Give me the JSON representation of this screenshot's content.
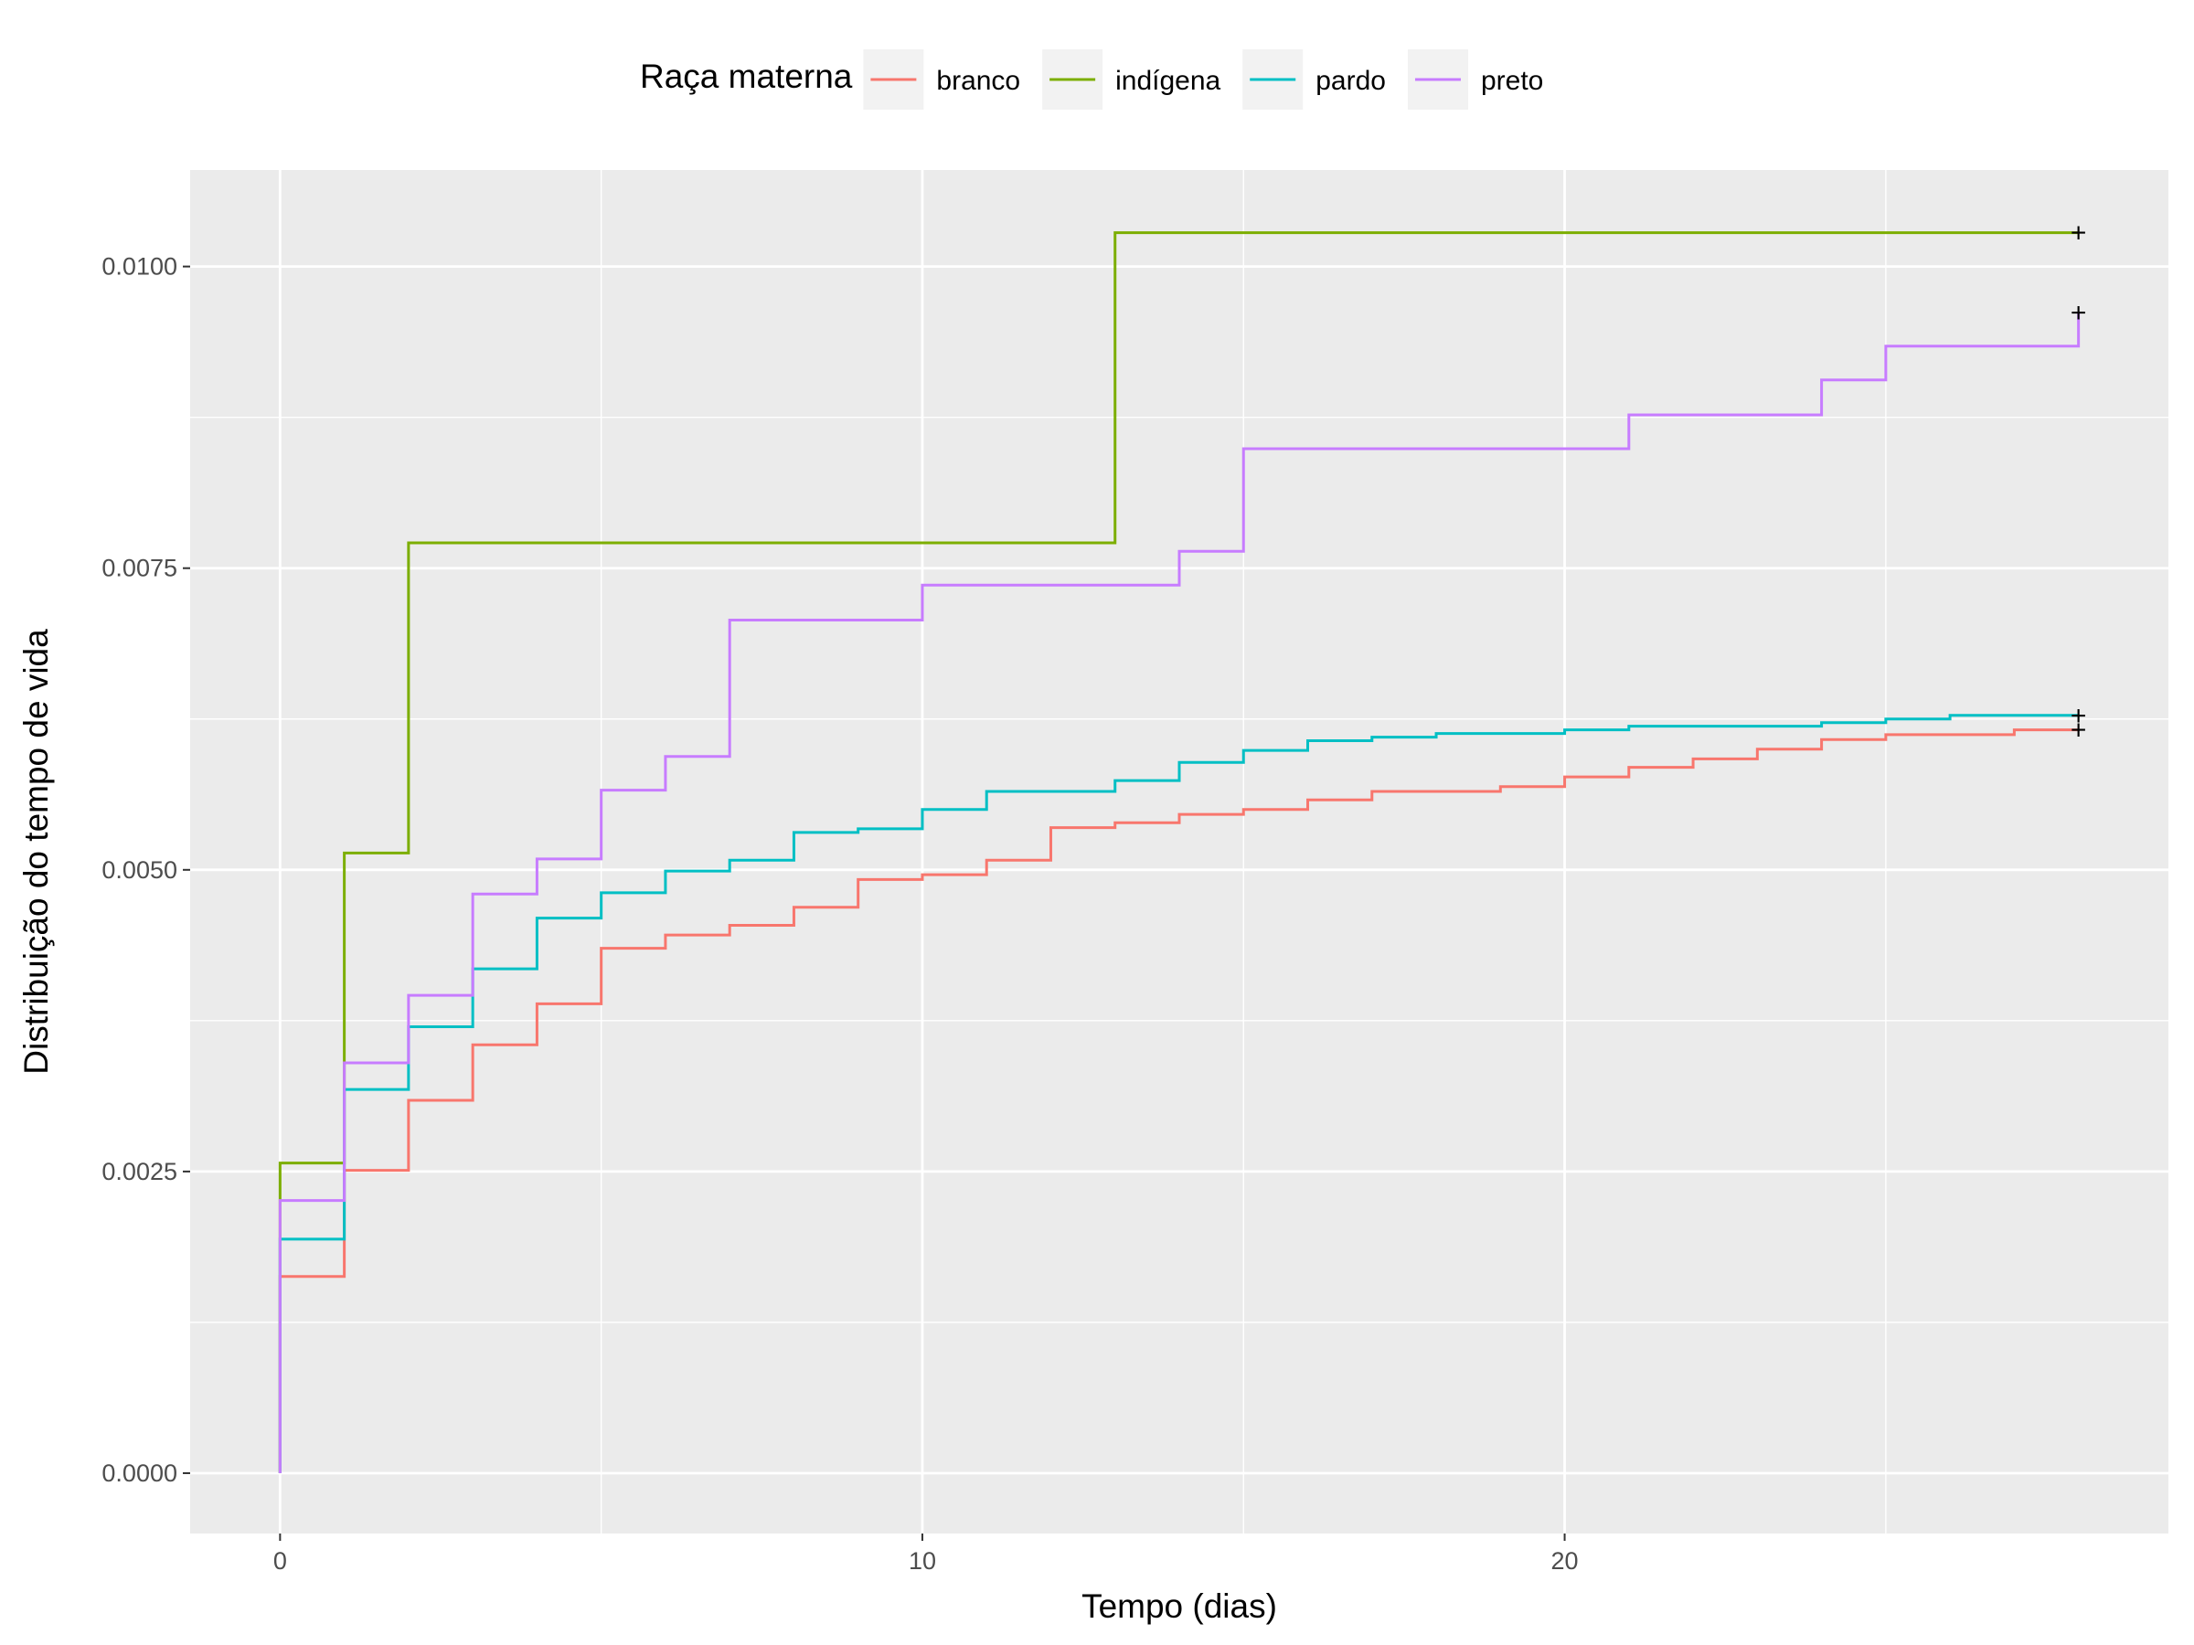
{
  "chart_data": {
    "type": "line",
    "step": true,
    "xlabel": "Tempo (dias)",
    "ylabel": "Distribuição do tempo de vida",
    "xlim": [
      -1.4,
      29.4
    ],
    "ylim": [
      -0.0005,
      0.0108
    ],
    "x_ticks": [
      0,
      10,
      20
    ],
    "x_tick_labels": [
      "0",
      "10",
      "20"
    ],
    "y_ticks": [
      0,
      0.0025,
      0.005,
      0.0075,
      0.01
    ],
    "y_tick_labels": [
      "0.0000",
      "0.0025",
      "0.0050",
      "0.0075",
      "0.0100"
    ],
    "grid": true,
    "legend": {
      "title": "Raça materna",
      "position": "top"
    },
    "censor_mark": "+",
    "series": [
      {
        "name": "branco",
        "color": "#F8766D",
        "x": [
          0,
          1,
          2,
          3,
          4,
          5,
          6,
          7,
          8,
          9,
          10,
          11,
          12,
          13,
          14,
          15,
          16,
          17,
          18,
          19,
          20,
          21,
          22,
          23,
          24,
          25,
          26,
          27,
          28
        ],
        "y": [
          0.00163,
          0.00251,
          0.00309,
          0.00355,
          0.00389,
          0.00435,
          0.00446,
          0.00454,
          0.00469,
          0.00492,
          0.00496,
          0.00508,
          0.00535,
          0.00539,
          0.00546,
          0.0055,
          0.00558,
          0.00565,
          0.00565,
          0.00569,
          0.00577,
          0.00585,
          0.00592,
          0.006,
          0.00608,
          0.00612,
          0.00612,
          0.00616,
          0.00616
        ]
      },
      {
        "name": "indígena",
        "color": "#7CAE00",
        "x": [
          0,
          1,
          2,
          13,
          28
        ],
        "y": [
          0.00257,
          0.00514,
          0.00771,
          0.01028,
          0.01028
        ]
      },
      {
        "name": "pardo",
        "color": "#00BFC4",
        "x": [
          0,
          1,
          2,
          3,
          4,
          5,
          6,
          7,
          8,
          9,
          10,
          11,
          12,
          13,
          14,
          15,
          16,
          17,
          18,
          19,
          20,
          21,
          22,
          23,
          24,
          25,
          26,
          27,
          28
        ],
        "y": [
          0.00194,
          0.00318,
          0.0037,
          0.00418,
          0.0046,
          0.00481,
          0.00499,
          0.00508,
          0.00531,
          0.00534,
          0.0055,
          0.00565,
          0.00565,
          0.00574,
          0.00589,
          0.00599,
          0.00607,
          0.0061,
          0.00613,
          0.00613,
          0.00616,
          0.00619,
          0.00619,
          0.00619,
          0.00622,
          0.00625,
          0.00628,
          0.00628,
          0.00628
        ]
      },
      {
        "name": "preto",
        "color": "#C77CFF",
        "x": [
          0,
          1,
          2,
          3,
          4,
          5,
          6,
          7,
          10,
          14,
          15,
          21,
          24,
          25,
          28
        ],
        "y": [
          0.00226,
          0.0034,
          0.00396,
          0.0048,
          0.00509,
          0.00566,
          0.00594,
          0.00707,
          0.00736,
          0.00764,
          0.00849,
          0.00877,
          0.00906,
          0.00934,
          0.00962
        ]
      }
    ]
  }
}
